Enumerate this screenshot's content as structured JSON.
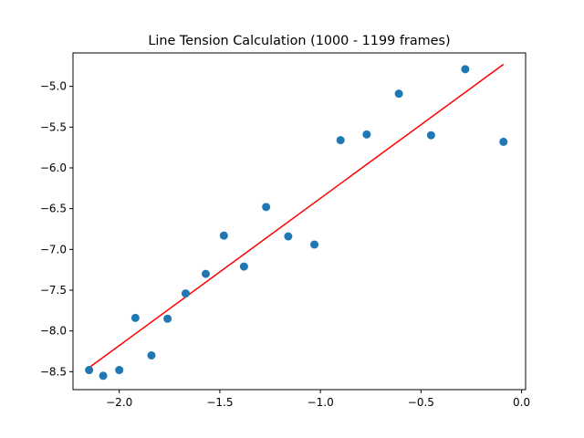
{
  "chart_data": {
    "type": "scatter",
    "title": "Line Tension Calculation (1000 - 1199 frames)",
    "xlabel": "",
    "ylabel": "",
    "xlim": [
      -2.23,
      0.02
    ],
    "ylim": [
      -8.72,
      -4.59
    ],
    "x_ticks": [
      -2.0,
      -1.5,
      -1.0,
      -0.5,
      0.0
    ],
    "x_tick_labels": [
      "−2.0",
      "−1.5",
      "−1.0",
      "−0.5",
      "0.0"
    ],
    "y_ticks": [
      -8.5,
      -8.0,
      -7.5,
      -7.0,
      -6.5,
      -6.0,
      -5.5,
      -5.0
    ],
    "y_tick_labels": [
      "−8.5",
      "−8.0",
      "−7.5",
      "−7.0",
      "−6.5",
      "−6.0",
      "−5.5",
      "−5.0"
    ],
    "grid": false,
    "series": [
      {
        "kind": "points",
        "color": "#1f77b4",
        "x": [
          -2.15,
          -2.08,
          -2.0,
          -1.92,
          -1.84,
          -1.76,
          -1.67,
          -1.57,
          -1.48,
          -1.38,
          -1.27,
          -1.16,
          -1.03,
          -0.9,
          -0.77,
          -0.61,
          -0.45,
          -0.28,
          -0.09
        ],
        "y": [
          -8.48,
          -8.55,
          -8.48,
          -7.84,
          -8.3,
          -7.85,
          -7.54,
          -7.3,
          -6.83,
          -7.21,
          -6.48,
          -6.84,
          -6.94,
          -5.66,
          -5.59,
          -5.09,
          -5.6,
          -4.79,
          -5.68
        ]
      },
      {
        "kind": "fit-line",
        "color": "#ff0000",
        "x": [
          -2.15,
          -0.09
        ],
        "y": [
          -8.45,
          -4.73
        ]
      }
    ]
  }
}
